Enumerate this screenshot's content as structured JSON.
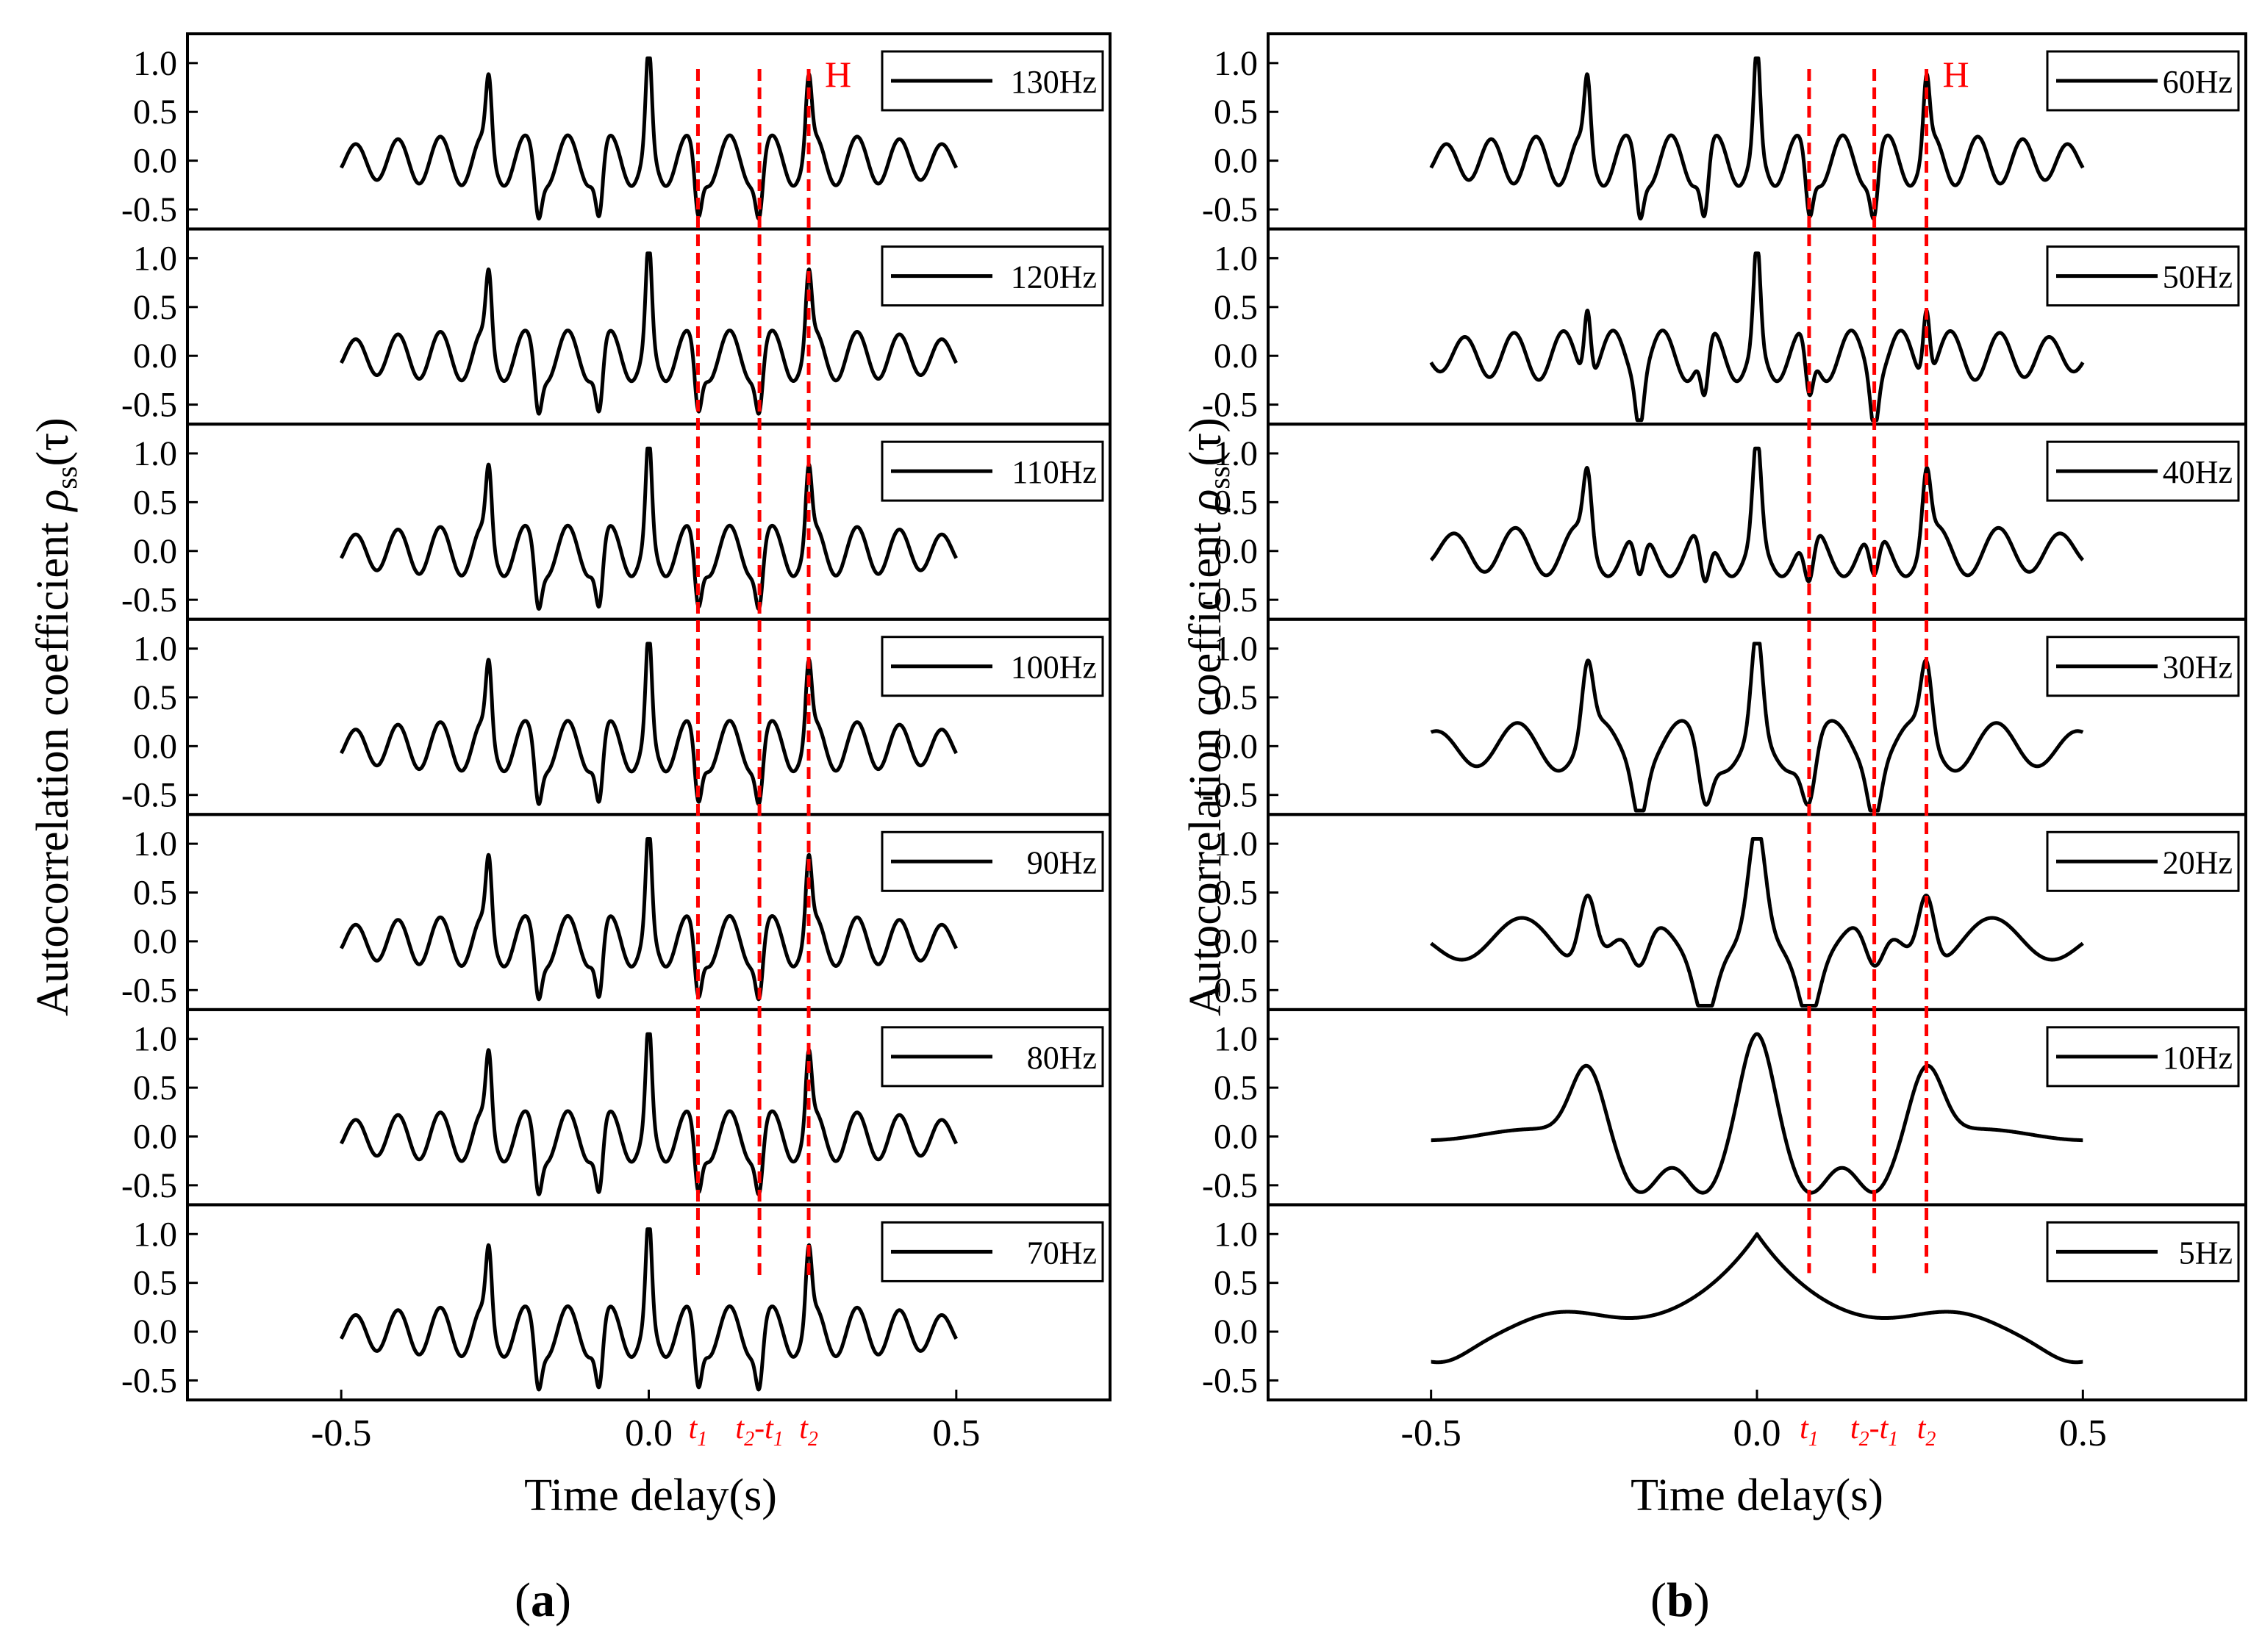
{
  "figure": {
    "colors": {
      "curve": "#000000",
      "marker": "#ff0000",
      "axis": "#000000"
    },
    "panel_labels": [
      {
        "open": "(",
        "letter": "a",
        "close": ")"
      },
      {
        "open": "(",
        "letter": "b",
        "close": ")"
      }
    ]
  },
  "chart_data": [
    {
      "type": "line",
      "panel": "a",
      "title": "",
      "xlabel": "Time delay(s)",
      "ylabel": {
        "text": "Autocorrelation coefficient ",
        "symbol": "ρ",
        "subscript": "ss",
        "arg": "(τ)"
      },
      "xlim": [
        -0.75,
        0.75
      ],
      "ylim": [
        -0.7,
        1.3
      ],
      "xticks": [
        -0.5,
        0.0,
        0.5
      ],
      "xtick_labels": [
        "-0.5",
        "0.0",
        "0.5"
      ],
      "yticks": [
        -0.5,
        0.0,
        0.5,
        1.0
      ],
      "ytick_labels": [
        "-0.5",
        "0.0",
        "0.5",
        "1.0"
      ],
      "x_range": [
        -0.5,
        0.5
      ],
      "grid": false,
      "legend_position": "top-right",
      "series": [
        {
          "name": "130Hz",
          "freq": 130
        },
        {
          "name": "120Hz",
          "freq": 120
        },
        {
          "name": "110Hz",
          "freq": 110
        },
        {
          "name": "100Hz",
          "freq": 100
        },
        {
          "name": "90Hz",
          "freq": 90
        },
        {
          "name": "80Hz",
          "freq": 80
        },
        {
          "name": "70Hz",
          "freq": 70
        }
      ],
      "markers": [
        {
          "x": 0.08,
          "label": "t",
          "sub": "1"
        },
        {
          "x": 0.18,
          "label": "t",
          "sub": "2",
          "suffix": "-t",
          "sub2": "1"
        },
        {
          "x": 0.26,
          "label": "t",
          "sub": "2"
        }
      ],
      "annotation": {
        "text": "H",
        "x": 0.26
      }
    },
    {
      "type": "line",
      "panel": "b",
      "title": "",
      "xlabel": "Time delay(s)",
      "ylabel": {
        "text": "Autocorrelation coefficient ",
        "symbol": "ρ",
        "subscript": "ss",
        "arg": "(τ)"
      },
      "xlim": [
        -0.75,
        0.75
      ],
      "ylim": [
        -0.7,
        1.3
      ],
      "xticks": [
        -0.5,
        0.0,
        0.5
      ],
      "xtick_labels": [
        "-0.5",
        "0.0",
        "0.5"
      ],
      "yticks": [
        -0.5,
        0.0,
        0.5,
        1.0
      ],
      "ytick_labels": [
        "-0.5",
        "0.0",
        "0.5",
        "1.0"
      ],
      "x_range": [
        -0.5,
        0.5
      ],
      "grid": false,
      "legend_position": "top-right",
      "series": [
        {
          "name": "60Hz",
          "freq": 60
        },
        {
          "name": "50Hz",
          "freq": 50
        },
        {
          "name": "40Hz",
          "freq": 40
        },
        {
          "name": "30Hz",
          "freq": 30
        },
        {
          "name": "20Hz",
          "freq": 20
        },
        {
          "name": "10Hz",
          "freq": 10
        },
        {
          "name": "5Hz",
          "freq": 5
        }
      ],
      "markers": [
        {
          "x": 0.08,
          "label": "t",
          "sub": "1"
        },
        {
          "x": 0.18,
          "label": "t",
          "sub": "2",
          "suffix": "-t",
          "sub2": "1"
        },
        {
          "x": 0.26,
          "label": "t",
          "sub": "2"
        }
      ],
      "annotation": {
        "text": "H",
        "x": 0.26
      }
    }
  ]
}
